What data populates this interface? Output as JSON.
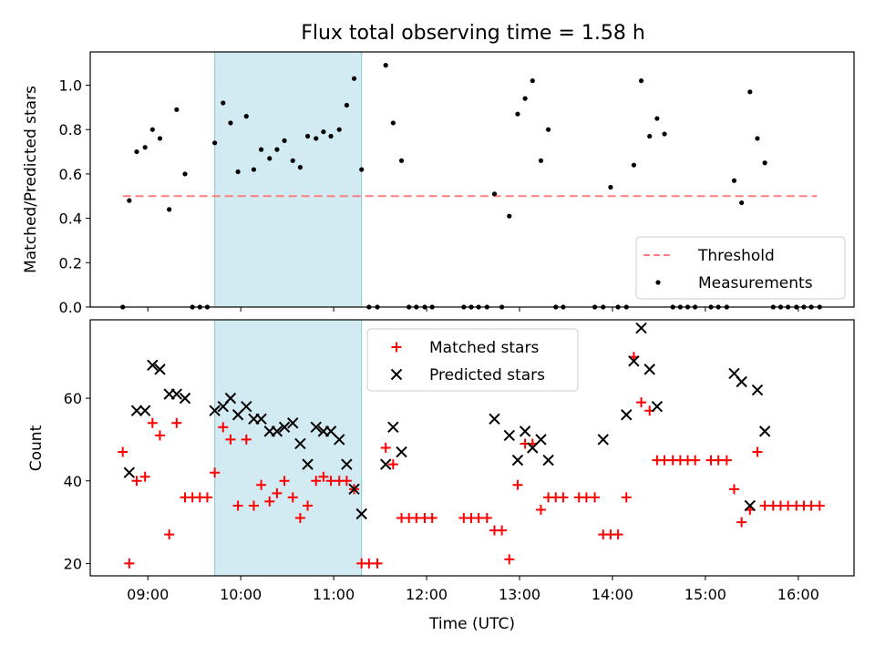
{
  "title": "Flux total observing time = 1.58 h",
  "colors": {
    "threshold": "#ff7f7f",
    "measurement": "#000000",
    "matched": "#ff0000",
    "predicted": "#000000",
    "highlight": "#add8e6"
  },
  "chart_data": [
    {
      "type": "scatter",
      "ylabel": "Matched/Predicted stars",
      "xlim": [
        8.38,
        16.6
      ],
      "ylim": [
        0,
        1.15
      ],
      "yticks": [
        "0.0",
        "0.2",
        "0.4",
        "0.6",
        "0.8",
        "1.0"
      ],
      "ytick_values": [
        0,
        0.2,
        0.4,
        0.6,
        0.8,
        1.0
      ],
      "highlight_span": [
        9.72,
        11.3
      ],
      "threshold": {
        "name": "Threshold",
        "value": 0.5,
        "x_range": [
          8.73,
          16.2
        ]
      },
      "legend": {
        "placement": "lower right",
        "entries": [
          "Threshold",
          "Measurements"
        ]
      },
      "series": [
        {
          "name": "Measurements",
          "x": [
            8.73,
            8.8,
            8.88,
            8.97,
            9.05,
            9.13,
            9.23,
            9.31,
            9.4,
            9.48,
            9.56,
            9.64,
            9.72,
            9.81,
            9.89,
            9.97,
            10.06,
            10.14,
            10.22,
            10.31,
            10.39,
            10.47,
            10.56,
            10.64,
            10.72,
            10.81,
            10.89,
            10.97,
            11.06,
            11.14,
            11.22,
            11.3,
            11.38,
            11.47,
            11.56,
            11.64,
            11.73,
            11.81,
            11.89,
            11.98,
            12.06,
            12.4,
            12.48,
            12.56,
            12.65,
            12.73,
            12.81,
            12.89,
            12.98,
            13.06,
            13.14,
            13.23,
            13.31,
            13.39,
            13.47,
            13.81,
            13.9,
            13.98,
            14.06,
            14.15,
            14.23,
            14.31,
            14.4,
            14.48,
            14.56,
            14.65,
            14.73,
            14.81,
            14.89,
            15.06,
            15.14,
            15.23,
            15.31,
            15.39,
            15.48,
            15.56,
            15.64,
            15.73,
            15.81,
            15.89,
            15.98,
            16.06,
            16.14,
            16.23
          ],
          "y": [
            0.0,
            0.48,
            0.7,
            0.72,
            0.8,
            0.76,
            0.44,
            0.89,
            0.6,
            0.0,
            0.0,
            0.0,
            0.74,
            0.92,
            0.83,
            0.61,
            0.86,
            0.62,
            0.71,
            0.67,
            0.71,
            0.75,
            0.66,
            0.63,
            0.77,
            0.76,
            0.79,
            0.77,
            0.8,
            0.91,
            1.03,
            0.62,
            0.0,
            0.0,
            1.09,
            0.83,
            0.66,
            0.0,
            0.0,
            0.0,
            0.0,
            0.0,
            0.0,
            0.0,
            0.0,
            0.51,
            0.0,
            0.41,
            0.87,
            0.94,
            1.02,
            0.66,
            0.8,
            0.0,
            0.0,
            0.0,
            0.0,
            0.54,
            0.0,
            0.0,
            0.64,
            1.02,
            0.77,
            0.85,
            0.78,
            0.0,
            0.0,
            0.0,
            0.0,
            0.0,
            0.0,
            0.0,
            0.57,
            0.47,
            0.97,
            0.76,
            0.65,
            0.0,
            0.0,
            0.0,
            0.0,
            0.0,
            0.0,
            0.0
          ]
        }
      ]
    },
    {
      "type": "scatter",
      "xlabel": "Time (UTC)",
      "ylabel": "Count",
      "xlim": [
        8.38,
        16.6
      ],
      "ylim": [
        17,
        79
      ],
      "yticks": [
        "20",
        "40",
        "60"
      ],
      "ytick_values": [
        20,
        40,
        60
      ],
      "xticks": [
        "09:00",
        "10:00",
        "11:00",
        "12:00",
        "13:00",
        "14:00",
        "15:00",
        "16:00"
      ],
      "xtick_values": [
        9,
        10,
        11,
        12,
        13,
        14,
        15,
        16
      ],
      "highlight_span": [
        9.72,
        11.3
      ],
      "legend": {
        "placement": "upper center",
        "entries": [
          "Matched stars",
          "Predicted stars"
        ]
      },
      "series": [
        {
          "name": "Matched stars",
          "marker": "+",
          "x": [
            8.73,
            8.8,
            8.88,
            8.97,
            9.05,
            9.13,
            9.23,
            9.31,
            9.4,
            9.48,
            9.56,
            9.64,
            9.72,
            9.81,
            9.89,
            9.97,
            10.06,
            10.14,
            10.22,
            10.31,
            10.39,
            10.47,
            10.56,
            10.64,
            10.72,
            10.81,
            10.89,
            10.97,
            11.06,
            11.14,
            11.22,
            11.3,
            11.38,
            11.47,
            11.56,
            11.64,
            11.73,
            11.81,
            11.89,
            11.98,
            12.06,
            12.4,
            12.48,
            12.56,
            12.65,
            12.73,
            12.81,
            12.89,
            12.98,
            13.06,
            13.14,
            13.23,
            13.31,
            13.39,
            13.47,
            13.64,
            13.72,
            13.81,
            13.9,
            13.98,
            14.06,
            14.15,
            14.23,
            14.31,
            14.4,
            14.48,
            14.56,
            14.65,
            14.73,
            14.81,
            14.89,
            15.06,
            15.14,
            15.23,
            15.31,
            15.39,
            15.48,
            15.56,
            15.64,
            15.73,
            15.81,
            15.89,
            15.98,
            16.06,
            16.14,
            16.23
          ],
          "y": [
            47,
            20,
            40,
            41,
            54,
            51,
            27,
            54,
            36,
            36,
            36,
            36,
            42,
            53,
            50,
            34,
            50,
            34,
            39,
            35,
            37,
            40,
            36,
            31,
            34,
            40,
            41,
            40,
            40,
            40,
            38,
            20,
            20,
            20,
            48,
            44,
            31,
            31,
            31,
            31,
            31,
            31,
            31,
            31,
            31,
            28,
            28,
            21,
            39,
            49,
            49,
            33,
            36,
            36,
            36,
            36,
            36,
            36,
            27,
            27,
            27,
            36,
            70,
            59,
            57,
            45,
            45,
            45,
            45,
            45,
            45,
            45,
            45,
            45,
            38,
            30,
            33,
            47,
            34,
            34,
            34,
            34,
            34,
            34,
            34,
            34
          ]
        },
        {
          "name": "Predicted stars",
          "marker": "x",
          "x": [
            8.8,
            8.88,
            8.97,
            9.05,
            9.13,
            9.23,
            9.31,
            9.4,
            9.72,
            9.81,
            9.89,
            9.97,
            10.06,
            10.14,
            10.22,
            10.31,
            10.39,
            10.47,
            10.56,
            10.64,
            10.72,
            10.81,
            10.89,
            10.97,
            11.06,
            11.14,
            11.22,
            11.3,
            11.56,
            11.64,
            11.73,
            12.73,
            12.89,
            12.98,
            13.06,
            13.14,
            13.23,
            13.31,
            13.9,
            14.15,
            14.23,
            14.31,
            14.4,
            14.48,
            15.31,
            15.39,
            15.48,
            15.56,
            15.64
          ],
          "y": [
            42,
            57,
            57,
            68,
            67,
            61,
            61,
            60,
            57,
            58,
            60,
            56,
            58,
            55,
            55,
            52,
            52,
            53,
            54,
            49,
            44,
            53,
            52,
            52,
            50,
            44,
            38,
            32,
            44,
            53,
            47,
            55,
            51,
            45,
            52,
            48,
            50,
            45,
            50,
            56,
            69,
            77,
            67,
            58,
            66,
            64,
            34,
            62,
            52
          ]
        }
      ]
    }
  ]
}
